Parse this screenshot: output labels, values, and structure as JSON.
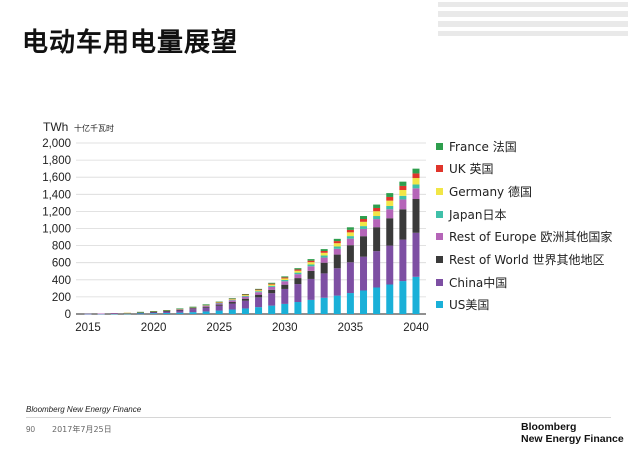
{
  "slide": {
    "title": "电动车用电量展望",
    "footer_source": "Bloomberg New Energy Finance",
    "page_number": "90",
    "date": "2017年7月25日",
    "brand_line1": "Bloomberg",
    "brand_line2": "New Energy Finance"
  },
  "chart_data": {
    "type": "bar",
    "stacked": true,
    "unit_label": "TWh",
    "unit_label_cn": "十亿千瓦时",
    "ylim": [
      0,
      2000
    ],
    "yticks": [
      "0",
      "200",
      "400",
      "600",
      "800",
      "1,000",
      "1,200",
      "1,400",
      "1,600",
      "1,800",
      "2,000"
    ],
    "xtick_labels": [
      "2015",
      "2020",
      "2025",
      "2030",
      "2035",
      "2040"
    ],
    "grid": true,
    "legend_position": "right",
    "categories": [
      2015,
      2016,
      2017,
      2018,
      2019,
      2020,
      2021,
      2022,
      2023,
      2024,
      2025,
      2026,
      2027,
      2028,
      2029,
      2030,
      2031,
      2032,
      2033,
      2034,
      2035,
      2036,
      2037,
      2038,
      2039,
      2040
    ],
    "series": [
      {
        "name": "US美国",
        "color": "#1ab0d8",
        "values": [
          1,
          2,
          3,
          4,
          6,
          9,
          12,
          16,
          22,
          30,
          40,
          52,
          65,
          80,
          98,
          118,
          140,
          165,
          190,
          215,
          245,
          275,
          310,
          345,
          385,
          435
        ]
      },
      {
        "name": "China中国",
        "color": "#7d4fa3",
        "values": [
          2,
          3,
          5,
          7,
          10,
          14,
          19,
          26,
          34,
          44,
          56,
          70,
          90,
          115,
          145,
          175,
          210,
          245,
          285,
          320,
          360,
          395,
          425,
          455,
          485,
          515
        ]
      },
      {
        "name": "Rest of World 世界其他地区",
        "color": "#3a3a3a",
        "values": [
          0,
          0,
          1,
          1,
          2,
          3,
          4,
          6,
          8,
          11,
          14,
          18,
          24,
          31,
          40,
          50,
          70,
          95,
          125,
          160,
          200,
          240,
          280,
          320,
          355,
          395
        ]
      },
      {
        "name": "Rest of Europe 欧洲其他国家",
        "color": "#b565b8",
        "values": [
          0,
          1,
          1,
          2,
          3,
          4,
          6,
          8,
          10,
          13,
          16,
          20,
          24,
          29,
          34,
          40,
          46,
          53,
          60,
          68,
          76,
          85,
          95,
          105,
          115,
          125
        ]
      },
      {
        "name": "Japan日本",
        "color": "#3fc0a9",
        "values": [
          0,
          0,
          0,
          0,
          1,
          1,
          1,
          2,
          3,
          4,
          5,
          7,
          9,
          11,
          13,
          15,
          18,
          21,
          24,
          27,
          30,
          33,
          36,
          39,
          42,
          45
        ]
      },
      {
        "name": "Germany 德国",
        "color": "#f1e646",
        "values": [
          0,
          0,
          0,
          1,
          1,
          1,
          2,
          3,
          4,
          5,
          6,
          8,
          10,
          12,
          15,
          18,
          22,
          27,
          32,
          38,
          44,
          50,
          56,
          62,
          68,
          75
        ]
      },
      {
        "name": "UK 英国",
        "color": "#e0352b",
        "values": [
          0,
          0,
          0,
          0,
          1,
          1,
          1,
          2,
          2,
          3,
          4,
          5,
          6,
          8,
          10,
          12,
          15,
          18,
          21,
          25,
          29,
          33,
          38,
          43,
          48,
          54
        ]
      },
      {
        "name": "France 法国",
        "color": "#2e9e4d",
        "values": [
          0,
          0,
          0,
          0,
          1,
          1,
          1,
          2,
          2,
          3,
          4,
          5,
          6,
          8,
          10,
          12,
          15,
          18,
          22,
          26,
          30,
          35,
          40,
          45,
          50,
          56
        ]
      }
    ]
  }
}
